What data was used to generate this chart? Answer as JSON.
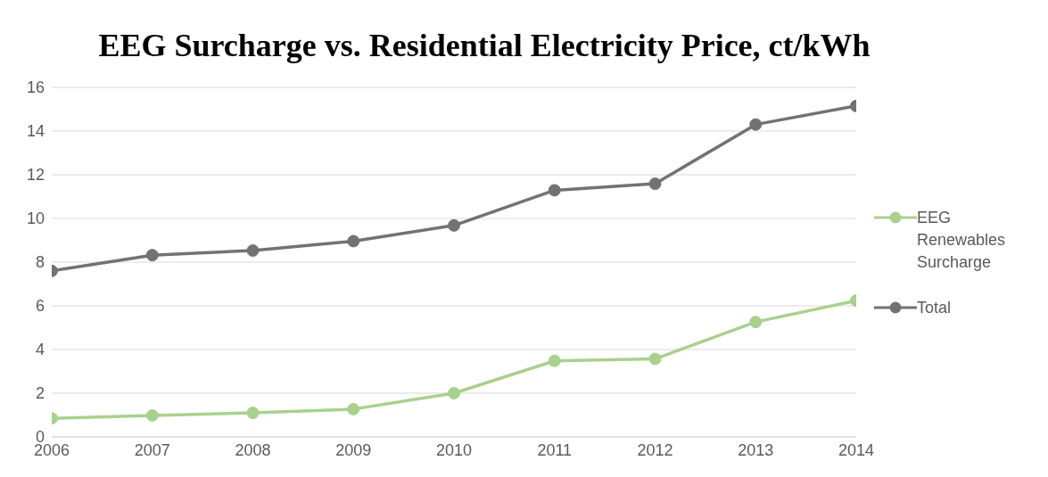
{
  "chart_data": {
    "type": "line",
    "title": "EEG Surcharge vs. Residential Electricity Price, ct/kWh",
    "x": [
      2006,
      2007,
      2008,
      2009,
      2010,
      2011,
      2012,
      2013,
      2014
    ],
    "xlim": [
      2006,
      2014
    ],
    "xticks": [
      2006,
      2007,
      2008,
      2009,
      2010,
      2011,
      2012,
      2013,
      2014
    ],
    "ylim": [
      0,
      16
    ],
    "yticks": [
      0,
      2,
      4,
      6,
      8,
      10,
      12,
      14,
      16
    ],
    "series": [
      {
        "name": "EEG Renewables Surcharge",
        "color": "#a9d18e",
        "values": [
          0.85,
          0.98,
          1.1,
          1.27,
          2.0,
          3.48,
          3.57,
          5.26,
          6.24
        ]
      },
      {
        "name": "Total",
        "color": "#767171",
        "values": [
          7.6,
          8.32,
          8.53,
          8.96,
          9.68,
          11.29,
          11.59,
          14.3,
          15.15
        ]
      }
    ],
    "grid": "y",
    "legend": "right",
    "marker": "circle",
    "line_style": "solid"
  }
}
